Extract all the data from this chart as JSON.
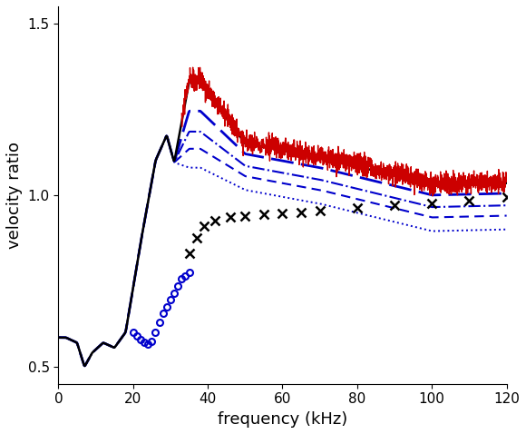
{
  "xlabel": "frequency (kHz)",
  "ylabel": "velocity ratio",
  "xlim": [
    0,
    120
  ],
  "ylim": [
    0.45,
    1.55
  ],
  "yticks": [
    0.5,
    1.0,
    1.5
  ],
  "xticks": [
    0,
    20,
    40,
    60,
    80,
    100,
    120
  ],
  "figsize": [
    5.8,
    4.78
  ],
  "dpi": 100,
  "black_line_color": "#000000",
  "red_line_color": "#cc0000",
  "blue_color": "#0000cc",
  "background_color": "#ffffff"
}
